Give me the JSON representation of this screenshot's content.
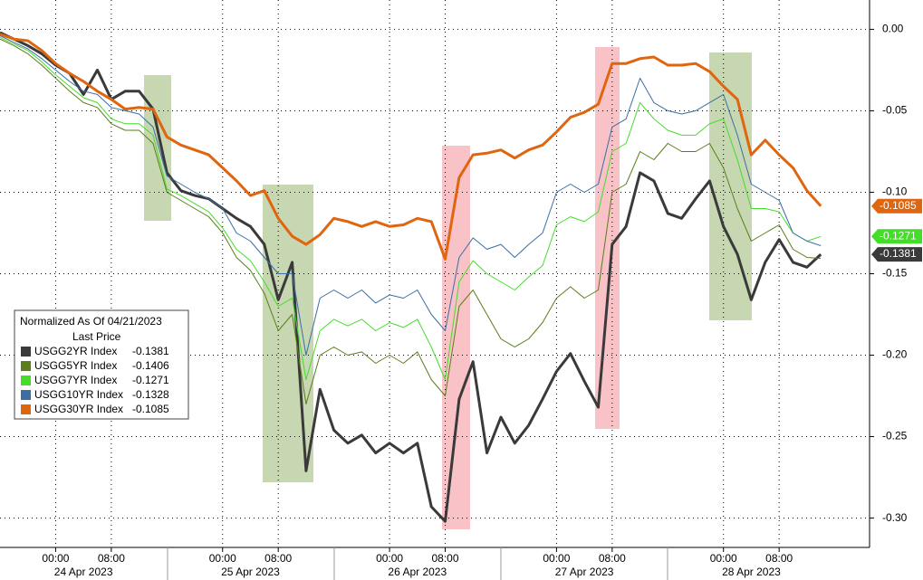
{
  "chart_data": {
    "type": "line",
    "legend_title": "Normalized As Of 04/21/2023",
    "legend_subtitle": "Last Price",
    "x": [
      "2023-04-23 16:00",
      "2023-04-23 18:00",
      "2023-04-23 20:00",
      "2023-04-23 22:00",
      "2023-04-24 00:00",
      "2023-04-24 02:00",
      "2023-04-24 04:00",
      "2023-04-24 06:00",
      "2023-04-24 08:00",
      "2023-04-24 10:00",
      "2023-04-24 12:00",
      "2023-04-24 14:00",
      "2023-04-24 16:00",
      "2023-04-24 18:00",
      "2023-04-24 20:00",
      "2023-04-24 22:00",
      "2023-04-25 00:00",
      "2023-04-25 02:00",
      "2023-04-25 04:00",
      "2023-04-25 06:00",
      "2023-04-25 08:00",
      "2023-04-25 10:00",
      "2023-04-25 12:00",
      "2023-04-25 14:00",
      "2023-04-25 16:00",
      "2023-04-25 18:00",
      "2023-04-25 20:00",
      "2023-04-25 22:00",
      "2023-04-26 00:00",
      "2023-04-26 02:00",
      "2023-04-26 04:00",
      "2023-04-26 06:00",
      "2023-04-26 08:00",
      "2023-04-26 10:00",
      "2023-04-26 12:00",
      "2023-04-26 14:00",
      "2023-04-26 16:00",
      "2023-04-26 18:00",
      "2023-04-26 20:00",
      "2023-04-26 22:00",
      "2023-04-27 00:00",
      "2023-04-27 02:00",
      "2023-04-27 04:00",
      "2023-04-27 06:00",
      "2023-04-27 08:00",
      "2023-04-27 10:00",
      "2023-04-27 12:00",
      "2023-04-27 14:00",
      "2023-04-27 16:00",
      "2023-04-27 18:00",
      "2023-04-27 20:00",
      "2023-04-27 22:00",
      "2023-04-28 00:00",
      "2023-04-28 02:00",
      "2023-04-28 04:00",
      "2023-04-28 06:00",
      "2023-04-28 08:00",
      "2023-04-28 10:00",
      "2023-04-28 12:00",
      "2023-04-28 14:00"
    ],
    "series": [
      {
        "name": "USGG2YR Index",
        "last": -0.1381,
        "tag": true,
        "color": "#3a3a3a",
        "width": 3,
        "values": [
          -0.002,
          -0.006,
          -0.01,
          -0.015,
          -0.022,
          -0.027,
          -0.04,
          -0.025,
          -0.043,
          -0.038,
          -0.038,
          -0.049,
          -0.088,
          -0.099,
          -0.102,
          -0.104,
          -0.11,
          -0.116,
          -0.121,
          -0.132,
          -0.166,
          -0.143,
          -0.271,
          -0.221,
          -0.246,
          -0.254,
          -0.249,
          -0.26,
          -0.254,
          -0.26,
          -0.254,
          -0.293,
          -0.302,
          -0.227,
          -0.204,
          -0.26,
          -0.238,
          -0.254,
          -0.243,
          -0.227,
          -0.21,
          -0.199,
          -0.216,
          -0.232,
          -0.132,
          -0.121,
          -0.088,
          -0.093,
          -0.113,
          -0.116,
          -0.104,
          -0.093,
          -0.121,
          -0.138,
          -0.166,
          -0.143,
          -0.129,
          -0.143,
          -0.146,
          -0.1381
        ]
      },
      {
        "name": "USGG5YR Index",
        "last": -0.1406,
        "tag": false,
        "color": "#5b7d1a",
        "width": 1,
        "values": [
          -0.006,
          -0.01,
          -0.015,
          -0.022,
          -0.03,
          -0.038,
          -0.045,
          -0.048,
          -0.058,
          -0.062,
          -0.062,
          -0.07,
          -0.1,
          -0.105,
          -0.11,
          -0.115,
          -0.125,
          -0.14,
          -0.148,
          -0.162,
          -0.185,
          -0.175,
          -0.23,
          -0.2,
          -0.195,
          -0.2,
          -0.198,
          -0.205,
          -0.2,
          -0.205,
          -0.198,
          -0.215,
          -0.225,
          -0.17,
          -0.16,
          -0.175,
          -0.19,
          -0.195,
          -0.19,
          -0.18,
          -0.165,
          -0.158,
          -0.165,
          -0.16,
          -0.1,
          -0.095,
          -0.075,
          -0.08,
          -0.07,
          -0.075,
          -0.075,
          -0.07,
          -0.085,
          -0.11,
          -0.13,
          -0.125,
          -0.12,
          -0.135,
          -0.14,
          -0.1406
        ]
      },
      {
        "name": "USGG7YR Index",
        "last": -0.1271,
        "tag": true,
        "color": "#44dd2a",
        "width": 1,
        "values": [
          -0.005,
          -0.009,
          -0.013,
          -0.02,
          -0.028,
          -0.035,
          -0.042,
          -0.045,
          -0.055,
          -0.058,
          -0.058,
          -0.065,
          -0.098,
          -0.102,
          -0.107,
          -0.112,
          -0.122,
          -0.135,
          -0.142,
          -0.155,
          -0.17,
          -0.165,
          -0.215,
          -0.185,
          -0.178,
          -0.182,
          -0.178,
          -0.185,
          -0.18,
          -0.183,
          -0.178,
          -0.195,
          -0.215,
          -0.155,
          -0.142,
          -0.15,
          -0.155,
          -0.16,
          -0.152,
          -0.145,
          -0.12,
          -0.115,
          -0.118,
          -0.112,
          -0.075,
          -0.07,
          -0.045,
          -0.055,
          -0.062,
          -0.065,
          -0.065,
          -0.058,
          -0.055,
          -0.08,
          -0.11,
          -0.11,
          -0.112,
          -0.125,
          -0.13,
          -0.1271
        ]
      },
      {
        "name": "USGG10YR Index",
        "last": -0.1328,
        "tag": false,
        "color": "#3a6ea5",
        "width": 1,
        "values": [
          -0.004,
          -0.008,
          -0.012,
          -0.018,
          -0.025,
          -0.032,
          -0.038,
          -0.04,
          -0.048,
          -0.05,
          -0.052,
          -0.06,
          -0.09,
          -0.095,
          -0.1,
          -0.104,
          -0.11,
          -0.125,
          -0.13,
          -0.14,
          -0.15,
          -0.15,
          -0.2,
          -0.165,
          -0.16,
          -0.165,
          -0.16,
          -0.168,
          -0.163,
          -0.165,
          -0.16,
          -0.175,
          -0.185,
          -0.14,
          -0.128,
          -0.135,
          -0.132,
          -0.14,
          -0.132,
          -0.125,
          -0.1,
          -0.095,
          -0.1,
          -0.095,
          -0.06,
          -0.055,
          -0.03,
          -0.045,
          -0.05,
          -0.052,
          -0.05,
          -0.045,
          -0.04,
          -0.065,
          -0.095,
          -0.1,
          -0.105,
          -0.125,
          -0.13,
          -0.1328
        ]
      },
      {
        "name": "USGG30YR Index",
        "last": -0.1085,
        "tag": true,
        "color": "#e0650f",
        "width": 3,
        "values": [
          -0.003,
          -0.006,
          -0.007,
          -0.013,
          -0.021,
          -0.027,
          -0.032,
          -0.038,
          -0.043,
          -0.049,
          -0.048,
          -0.049,
          -0.066,
          -0.071,
          -0.074,
          -0.077,
          -0.085,
          -0.093,
          -0.102,
          -0.099,
          -0.116,
          -0.127,
          -0.132,
          -0.126,
          -0.116,
          -0.118,
          -0.121,
          -0.118,
          -0.121,
          -0.12,
          -0.116,
          -0.118,
          -0.141,
          -0.091,
          -0.077,
          -0.076,
          -0.074,
          -0.079,
          -0.074,
          -0.071,
          -0.063,
          -0.054,
          -0.051,
          -0.046,
          -0.021,
          -0.021,
          -0.018,
          -0.017,
          -0.022,
          -0.022,
          -0.021,
          -0.026,
          -0.035,
          -0.043,
          -0.077,
          -0.068,
          -0.077,
          -0.085,
          -0.099,
          -0.1085
        ]
      }
    ],
    "xlim": [
      "2023-04-23 16:00",
      "2023-04-28 21:00"
    ],
    "xticks": [
      {
        "value": "2023-04-24 00:00",
        "label": "00:00"
      },
      {
        "value": "2023-04-24 08:00",
        "label": "08:00"
      },
      {
        "value": "2023-04-25 00:00",
        "label": "00:00"
      },
      {
        "value": "2023-04-25 08:00",
        "label": "08:00"
      },
      {
        "value": "2023-04-26 00:00",
        "label": "00:00"
      },
      {
        "value": "2023-04-26 08:00",
        "label": "08:00"
      },
      {
        "value": "2023-04-27 00:00",
        "label": "00:00"
      },
      {
        "value": "2023-04-27 08:00",
        "label": "08:00"
      },
      {
        "value": "2023-04-28 00:00",
        "label": "00:00"
      },
      {
        "value": "2023-04-28 08:00",
        "label": "08:00"
      }
    ],
    "day_labels": [
      "24 Apr 2023",
      "25 Apr 2023",
      "26 Apr 2023",
      "27 Apr 2023",
      "28 Apr 2023"
    ],
    "ylim": [
      -0.318,
      0.018
    ],
    "yticks": [
      {
        "value": 0,
        "label": "0.00"
      },
      {
        "value": -0.05,
        "label": "-0.05"
      },
      {
        "value": -0.1,
        "label": "-0.10"
      },
      {
        "value": -0.15,
        "label": "-0.15"
      },
      {
        "value": -0.2,
        "label": "-0.20"
      },
      {
        "value": -0.25,
        "label": "-0.25"
      },
      {
        "value": -0.3,
        "label": "-0.30"
      }
    ],
    "grid": true
  }
}
